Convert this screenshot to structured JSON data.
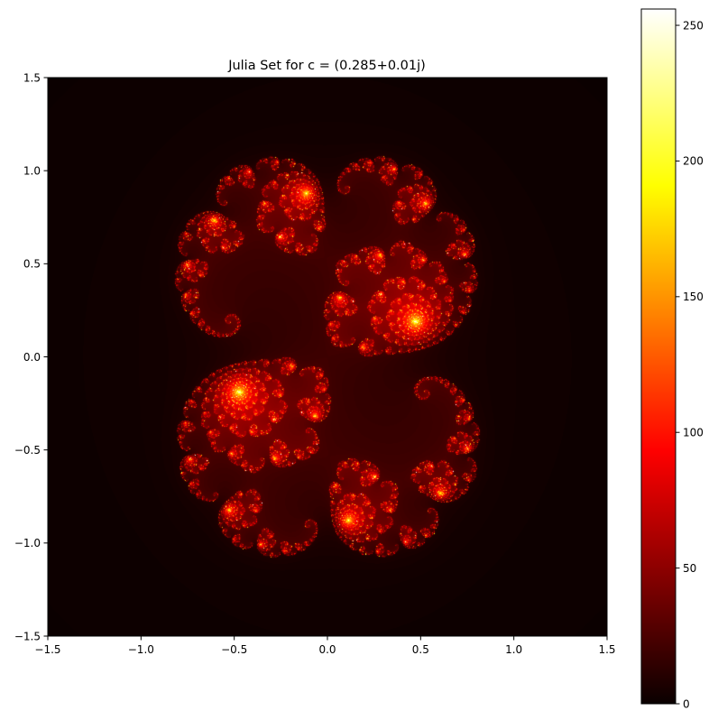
{
  "chart_data": {
    "type": "heatmap",
    "title": "Julia Set for c = (0.285+0.01j)",
    "c_real": 0.285,
    "c_imag": 0.01,
    "max_iterations": 256,
    "colormap": "hot",
    "xlabel": "",
    "ylabel": "",
    "xlim": [
      -1.5,
      1.5
    ],
    "ylim": [
      -1.5,
      1.5
    ],
    "x_ticks": [
      -1.5,
      -1.0,
      -0.5,
      0.0,
      0.5,
      1.0,
      1.5
    ],
    "x_tick_labels": [
      "−1.5",
      "−1.0",
      "−0.5",
      "0.0",
      "0.5",
      "1.0",
      "1.5"
    ],
    "y_ticks": [
      -1.5,
      -1.0,
      -0.5,
      0.0,
      0.5,
      1.0,
      1.5
    ],
    "y_tick_labels": [
      "−1.5",
      "−1.0",
      "−0.5",
      "0.0",
      "0.5",
      "1.0",
      "1.5"
    ],
    "colorbar": {
      "range": [
        0,
        256
      ],
      "ticks": [
        0,
        50,
        100,
        150,
        200,
        250
      ],
      "tick_labels": [
        "0",
        "50",
        "100",
        "150",
        "200",
        "250"
      ]
    },
    "grid": false,
    "legend": "none"
  }
}
